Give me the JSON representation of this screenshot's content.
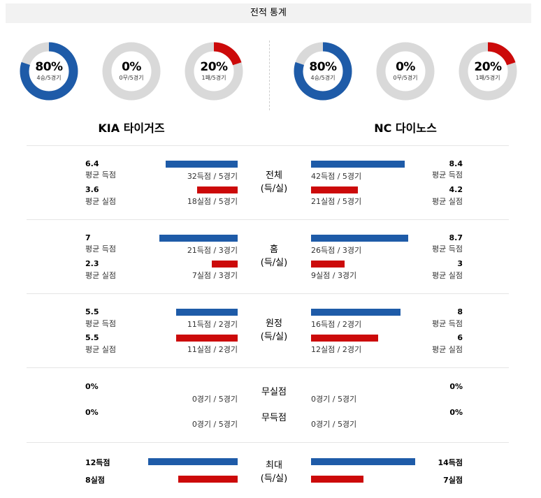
{
  "title": "전적 통계",
  "colors": {
    "win": "#1e5ba8",
    "loss": "#cc0a0a",
    "track": "#d9d9d9"
  },
  "teams": [
    {
      "name": "KIA 타이거즈",
      "donuts": [
        {
          "pct": "80%",
          "sub": "4승/5경기",
          "fraction": 0.8,
          "color": "#1e5ba8"
        },
        {
          "pct": "0%",
          "sub": "0무/5경기",
          "fraction": 0,
          "color": "#d9d9d9"
        },
        {
          "pct": "20%",
          "sub": "1패/5경기",
          "fraction": 0.2,
          "color": "#cc0a0a"
        }
      ]
    },
    {
      "name": "NC 다이노스",
      "donuts": [
        {
          "pct": "80%",
          "sub": "4승/5경기",
          "fraction": 0.8,
          "color": "#1e5ba8"
        },
        {
          "pct": "0%",
          "sub": "0무/5경기",
          "fraction": 0,
          "color": "#d9d9d9"
        },
        {
          "pct": "20%",
          "sub": "1패/5경기",
          "fraction": 0.2,
          "color": "#cc0a0a"
        }
      ]
    }
  ],
  "sections": [
    {
      "cat1": "전체",
      "cat2": "(득/실)",
      "left": {
        "score_val": "6.4",
        "score_lbl": "평균 득점",
        "score_sub": "32득점 / 5경기",
        "loss_val": "3.6",
        "loss_lbl": "평균 실점",
        "loss_sub": "18실점 / 5경기"
      },
      "right": {
        "score_val": "8.4",
        "score_lbl": "평균 득점",
        "score_sub": "42득점 / 5경기",
        "loss_val": "4.2",
        "loss_lbl": "평균 실점",
        "loss_sub": "21실점 / 5경기"
      }
    },
    {
      "cat1": "홈",
      "cat2": "(득/실)",
      "left": {
        "score_val": "7",
        "score_lbl": "평균 득점",
        "score_sub": "21득점 / 3경기",
        "loss_val": "2.3",
        "loss_lbl": "평균 실점",
        "loss_sub": "7실점 / 3경기"
      },
      "right": {
        "score_val": "8.7",
        "score_lbl": "평균 득점",
        "score_sub": "26득점 / 3경기",
        "loss_val": "3",
        "loss_lbl": "평균 실점",
        "loss_sub": "9실점 / 3경기"
      }
    },
    {
      "cat1": "원정",
      "cat2": "(득/실)",
      "left": {
        "score_val": "5.5",
        "score_lbl": "평균 득점",
        "score_sub": "11득점 / 2경기",
        "loss_val": "5.5",
        "loss_lbl": "평균 실점",
        "loss_sub": "11실점 / 2경기"
      },
      "right": {
        "score_val": "8",
        "score_lbl": "평균 득점",
        "score_sub": "16득점 / 2경기",
        "loss_val": "6",
        "loss_lbl": "평균 실점",
        "loss_sub": "12실점 / 2경기"
      }
    }
  ],
  "shutout": {
    "cat_a": "무실점",
    "cat_b": "무득점",
    "left": {
      "a_val": "0%",
      "a_sub": "0경기 / 5경기",
      "b_val": "0%",
      "b_sub": "0경기 / 5경기"
    },
    "right": {
      "a_val": "0%",
      "a_sub": "0경기 / 5경기",
      "b_val": "0%",
      "b_sub": "0경기 / 5경기"
    }
  },
  "max": {
    "cat1": "최대",
    "cat2": "(득/실)",
    "left": {
      "score": "12득점",
      "loss": "8실점"
    },
    "right": {
      "score": "14득점",
      "loss": "7실점"
    }
  }
}
